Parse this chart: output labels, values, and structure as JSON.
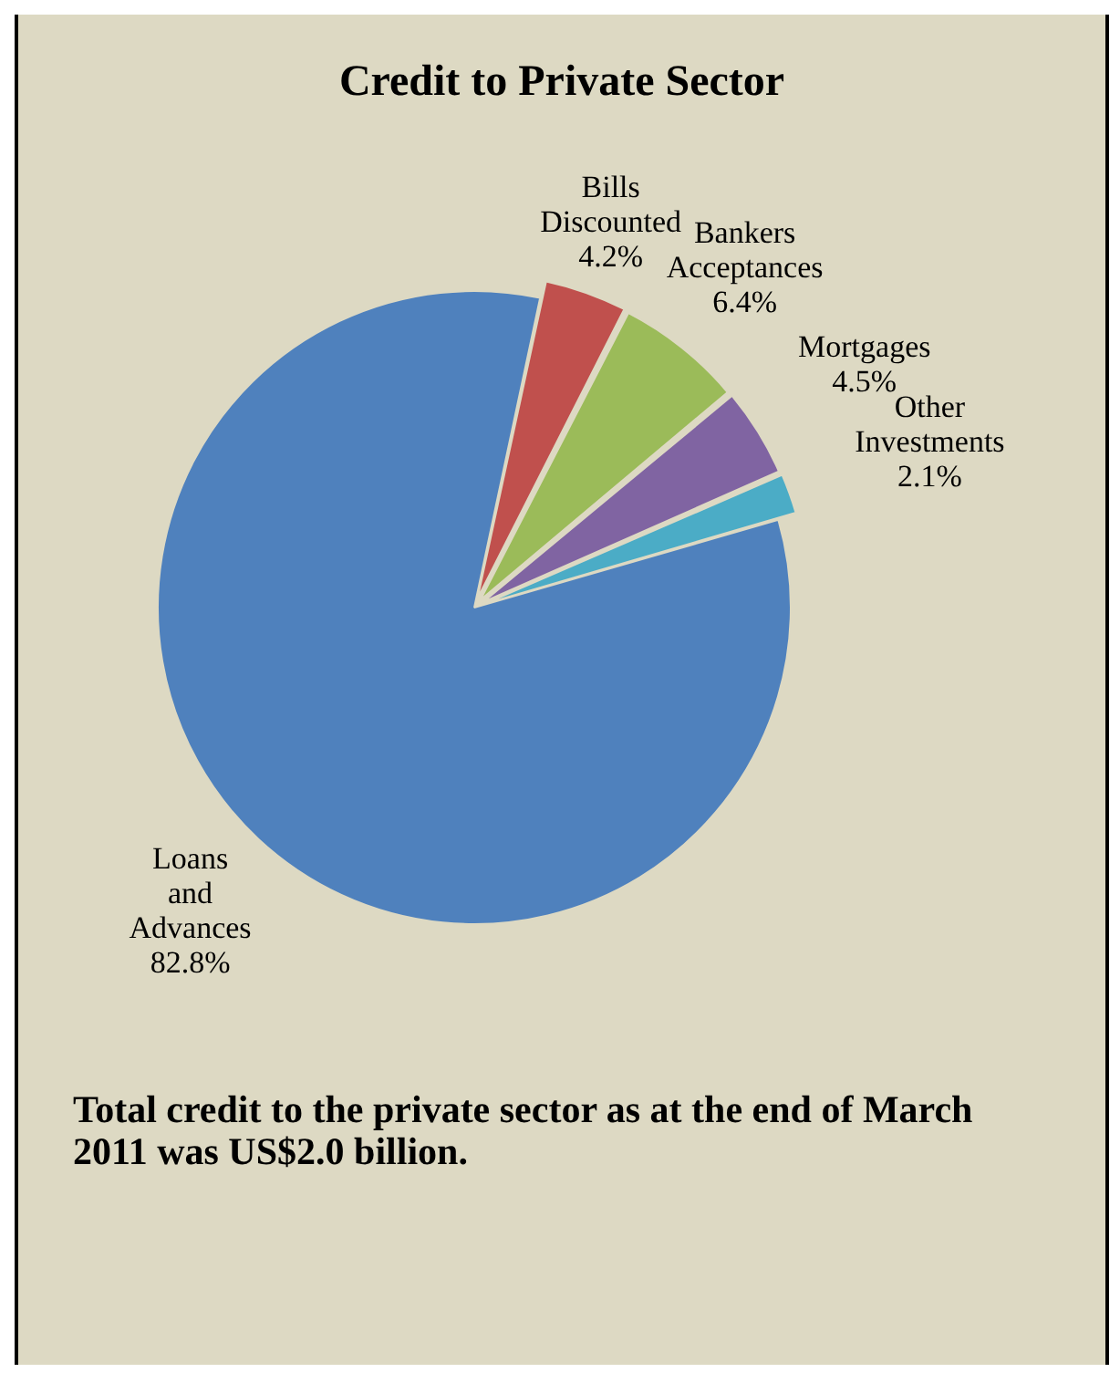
{
  "chart_data": {
    "type": "pie",
    "title": "Credit to Private Sector",
    "categories": [
      "Bills Discounted",
      "Bankers Acceptances",
      "Mortgages",
      "Other Investments",
      "Loans and Advances"
    ],
    "values": [
      4.2,
      6.4,
      4.5,
      2.1,
      82.8
    ],
    "colors": [
      "#c0504d",
      "#9bbb59",
      "#8064a2",
      "#4bacc6",
      "#4f81bd"
    ],
    "value_labels": [
      "4.2%",
      "6.4%",
      "4.5%",
      "2.1%",
      "82.8%"
    ],
    "legend": false,
    "annotations": [
      "Total credit to the private sector as at the end of  March 2011 was US$2.0 billion."
    ]
  }
}
